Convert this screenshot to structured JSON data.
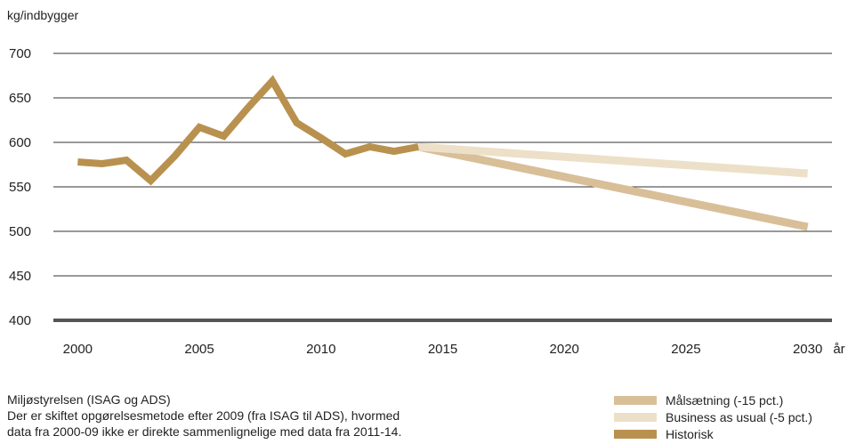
{
  "chart_data": {
    "type": "line",
    "ylabel": "kg/indbygger",
    "xlabel": "år",
    "ylim": [
      400,
      700
    ],
    "yticks": [
      400,
      450,
      500,
      550,
      600,
      650,
      700
    ],
    "xlim": [
      1999,
      2031
    ],
    "xticks": [
      2000,
      2005,
      2010,
      2015,
      2020,
      2025,
      2030
    ],
    "grid": true,
    "legend_position": "bottom-right",
    "series": [
      {
        "name": "Målsætning (-15 pct.)",
        "color": "#d8bf98",
        "x": [
          2014,
          2030
        ],
        "y": [
          595,
          505
        ]
      },
      {
        "name": "Business as usual (-5 pct.)",
        "color": "#ede0c8",
        "x": [
          2014,
          2030
        ],
        "y": [
          595,
          565
        ]
      },
      {
        "name": "Historisk",
        "color": "#b9914f",
        "x": [
          2000,
          2001,
          2002,
          2003,
          2004,
          2005,
          2006,
          2007,
          2008,
          2009,
          2010,
          2011,
          2012,
          2013,
          2014
        ],
        "y": [
          578,
          576,
          580,
          557,
          585,
          617,
          607,
          639,
          669,
          622,
          605,
          587,
          595,
          590,
          595
        ]
      }
    ]
  },
  "notes": {
    "source": "Miljøstyrelsen (ISAG og ADS)",
    "line1": "Der er skiftet opgørelsesmetode efter 2009 (fra ISAG til ADS), hvormed",
    "line2": "data fra 2000-09 ikke er direkte sammenlignelige med data fra 2011-14."
  }
}
